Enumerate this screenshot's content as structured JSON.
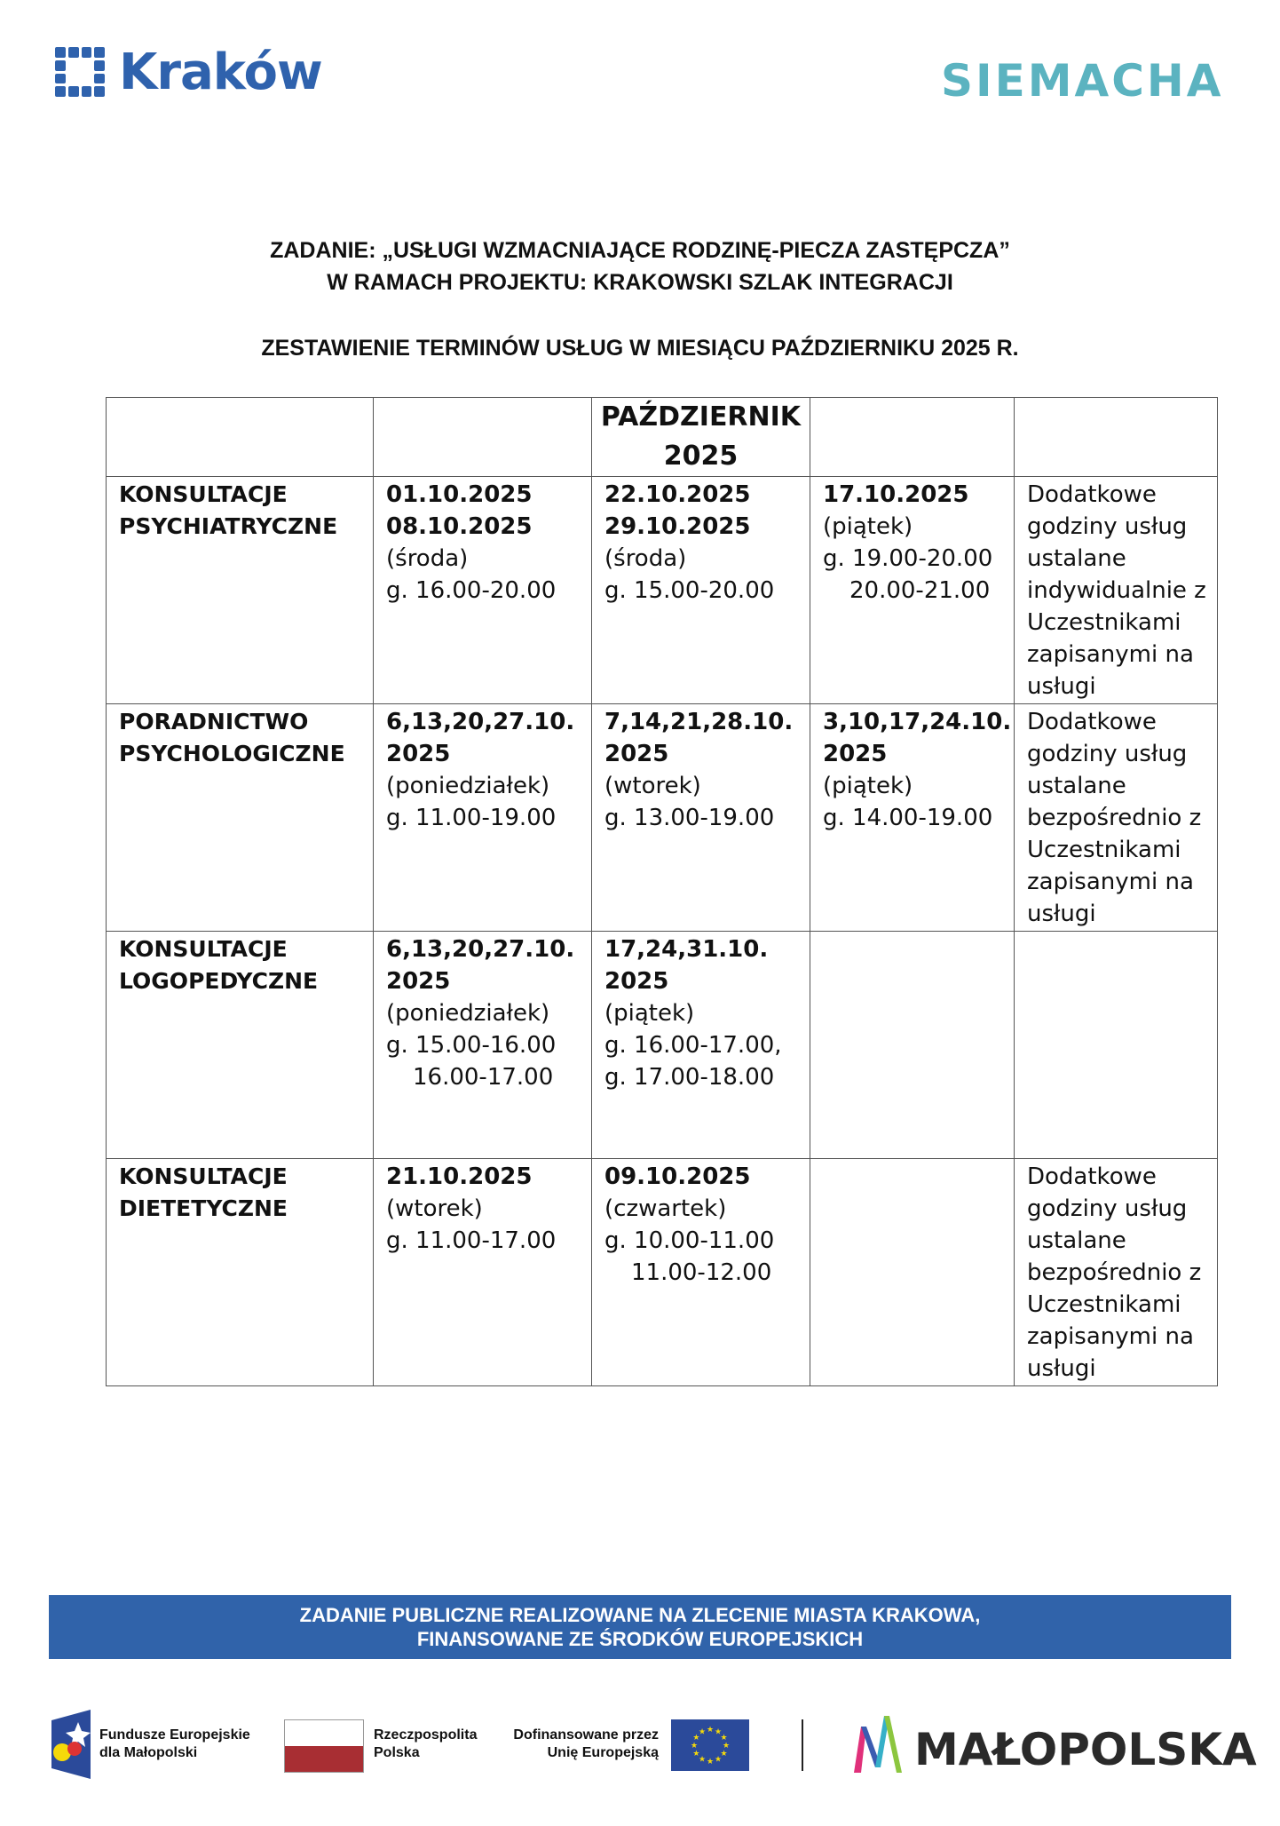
{
  "header": {
    "krakow_logo": "Kraków",
    "siemacha_logo": "SIEMACHA"
  },
  "titles": {
    "line1": "ZADANIE: „USŁUGI WZMACNIAJĄCE RODZINĘ-PIECZA ZASTĘPCZA”",
    "line2": "W RAMACH PROJEKTU: KRAKOWSKI SZLAK INTEGRACJI",
    "line3": "ZESTAWIENIE TERMINÓW USŁUG W MIESIĄCU PAŹDZIERNIKU 2025 R."
  },
  "table": {
    "header": [
      "",
      "",
      "PAŹDZIERNIK\n2025",
      "",
      ""
    ],
    "rows": [
      {
        "label": [
          "KONSULTACJE",
          "PSYCHIATRYCZNE"
        ],
        "cells": [
          [
            {
              "t": "01.10.2025",
              "b": true
            },
            {
              "t": "08.10.2025",
              "b": true
            },
            {
              "t": "(środa)"
            },
            {
              "t": "g. 16.00-20.00"
            }
          ],
          [
            {
              "t": "22.10.2025",
              "b": true
            },
            {
              "t": "29.10.2025",
              "b": true
            },
            {
              "t": "(środa)"
            },
            {
              "t": "g. 15.00-20.00"
            }
          ],
          [
            {
              "t": "17.10.2025",
              "b": true
            },
            {
              "t": "(piątek)"
            },
            {
              "t": "g. 19.00-20.00"
            },
            {
              "t": "20.00-21.00",
              "i": true
            }
          ],
          [
            {
              "t": "Dodatkowe"
            },
            {
              "t": "godziny usług"
            },
            {
              "t": "ustalane"
            },
            {
              "t": "indywidualnie z"
            },
            {
              "t": "Uczestnikami"
            },
            {
              "t": "zapisanymi na"
            },
            {
              "t": "usługi"
            }
          ]
        ]
      },
      {
        "label": [
          "PORADNICTWO",
          "PSYCHOLOGICZNE"
        ],
        "cells": [
          [
            {
              "t": "6,13,20,27.10.",
              "b": true
            },
            {
              "t": "2025",
              "b": true
            },
            {
              "t": "(poniedziałek)"
            },
            {
              "t": "g. 11.00-19.00"
            }
          ],
          [
            {
              "t": "7,14,21,28.10.",
              "b": true
            },
            {
              "t": "2025",
              "b": true
            },
            {
              "t": "(wtorek)"
            },
            {
              "t": "g. 13.00-19.00"
            }
          ],
          [
            {
              "t": "3,10,17,24.10.",
              "b": true
            },
            {
              "t": "2025",
              "b": true
            },
            {
              "t": "(piątek)"
            },
            {
              "t": "g. 14.00-19.00"
            }
          ],
          [
            {
              "t": "Dodatkowe"
            },
            {
              "t": "godziny usług"
            },
            {
              "t": "ustalane"
            },
            {
              "t": "bezpośrednio z"
            },
            {
              "t": "Uczestnikami"
            },
            {
              "t": "zapisanymi na"
            },
            {
              "t": "usługi"
            }
          ]
        ]
      },
      {
        "label": [
          "KONSULTACJE",
          "LOGOPEDYCZNE"
        ],
        "cells": [
          [
            {
              "t": "6,13,20,27.10.",
              "b": true
            },
            {
              "t": "2025",
              "b": true
            },
            {
              "t": "(poniedziałek)"
            },
            {
              "t": "g. 15.00-16.00"
            },
            {
              "t": "16.00-17.00",
              "i": true
            }
          ],
          [
            {
              "t": "17,24,31.10.",
              "b": true
            },
            {
              "t": "2025",
              "b": true
            },
            {
              "t": "(piątek)"
            },
            {
              "t": "g. 16.00-17.00,"
            },
            {
              "t": "g. 17.00-18.00"
            }
          ],
          [],
          []
        ]
      },
      {
        "label": [
          "KONSULTACJE",
          "DIETETYCZNE"
        ],
        "cells": [
          [
            {
              "t": "21.10.2025",
              "b": true
            },
            {
              "t": "(wtorek)"
            },
            {
              "t": "g. 11.00-17.00"
            }
          ],
          [
            {
              "t": "09.10.2025",
              "b": true
            },
            {
              "t": "(czwartek)"
            },
            {
              "t": "g. 10.00-11.00"
            },
            {
              "t": "11.00-12.00",
              "i": true
            }
          ],
          [],
          [
            {
              "t": "Dodatkowe"
            },
            {
              "t": "godziny usług"
            },
            {
              "t": "ustalane"
            },
            {
              "t": "bezpośrednio z"
            },
            {
              "t": "Uczestnikami"
            },
            {
              "t": "zapisanymi na"
            },
            {
              "t": "usługi"
            }
          ]
        ]
      }
    ]
  },
  "footer": {
    "banner_line1": "ZADANIE PUBLICZNE  REALIZOWANE NA ZLECENIE MIASTA KRAKOWA,",
    "banner_line2": "FINANSOWANE ZE ŚRODKÓW EUROPEJSKICH",
    "fe_line1": "Fundusze Europejskie",
    "fe_line2": "dla Małopolski",
    "rp_line1": "Rzeczpospolita",
    "rp_line2": "Polska",
    "eu_line1": "Dofinansowane przez",
    "eu_line2": "Unię Europejską",
    "malopolska": "MAŁOPOLSKA",
    "colors": {
      "banner": "#3063aa",
      "flag_red": "#a82e33",
      "eu_blue": "#2b4a9a",
      "eu_star": "#f5d90a"
    }
  }
}
